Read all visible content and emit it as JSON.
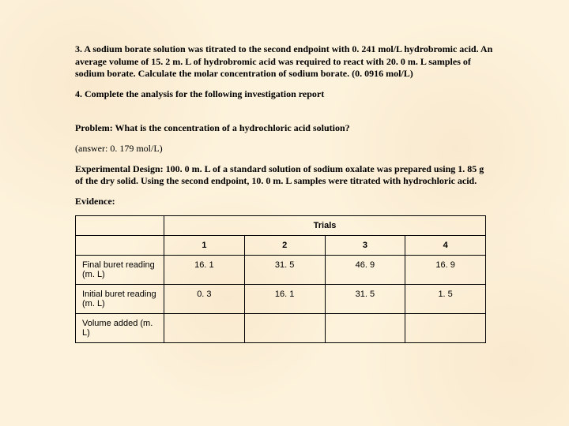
{
  "q3": "3. A sodium borate solution was titrated to the second endpoint with 0. 241 mol/L hydrobromic acid. An average volume of 15. 2 m. L of hydrobromic acid was required to react with 20. 0 m. L samples of sodium borate. Calculate the molar concentration of sodium borate. (0. 0916 mol/L)",
  "q4": "4. Complete the analysis for the following investigation report",
  "problem": "Problem: What is the concentration of a hydrochloric acid solution?",
  "answer": "(answer: 0. 179 mol/L)",
  "design": "Experimental Design: 100. 0 m. L of a standard solution of sodium oxalate was prepared using 1. 85 g of the dry solid. Using the second endpoint, 10. 0 m. L samples were titrated with hydrochloric acid.",
  "evidence": "Evidence:",
  "table": {
    "trials_label": "Trials",
    "columns": [
      "1",
      "2",
      "3",
      "4"
    ],
    "rows": [
      {
        "label": "Final buret reading (m. L)",
        "values": [
          "16. 1",
          "31. 5",
          "46. 9",
          "16. 9"
        ]
      },
      {
        "label": "Initial buret reading (m. L)",
        "values": [
          "0. 3",
          "16. 1",
          "31. 5",
          "1. 5"
        ]
      },
      {
        "label": "Volume added (m. L)",
        "values": [
          "",
          "",
          "",
          ""
        ]
      }
    ]
  }
}
